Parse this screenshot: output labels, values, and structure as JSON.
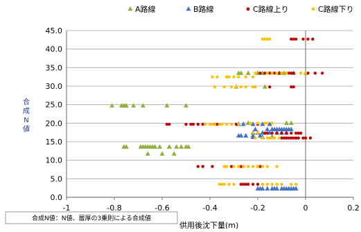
{
  "chart_data": {
    "type": "scatter",
    "title": "",
    "xlabel": "供用後沈下量(m)",
    "ylabel": "合成N値",
    "xlim": [
      -1,
      0.2
    ],
    "ylim": [
      0,
      45
    ],
    "xticks": [
      "-1",
      "-0.8",
      "-0.6",
      "-0.4",
      "-0.2",
      "0",
      "0.2"
    ],
    "yticks": [
      "0.0",
      "5.0",
      "10.0",
      "15.0",
      "20.0",
      "25.0",
      "30.0",
      "35.0",
      "40.0",
      "45.0"
    ],
    "grid": "horizontal",
    "legend_position": "top",
    "note": "合成N値：N値、層厚の3乗則による合成値",
    "series": [
      {
        "name": "A路線",
        "marker": "triangle",
        "color": "#8db13a",
        "points": [
          [
            -0.81,
            24.7
          ],
          [
            -0.77,
            24.7
          ],
          [
            -0.76,
            24.7
          ],
          [
            -0.75,
            24.7
          ],
          [
            -0.72,
            24.7
          ],
          [
            -0.68,
            24.7
          ],
          [
            -0.58,
            24.7
          ],
          [
            -0.5,
            24.7
          ],
          [
            -0.76,
            13.6
          ],
          [
            -0.75,
            13.6
          ],
          [
            -0.69,
            13.6
          ],
          [
            -0.68,
            13.6
          ],
          [
            -0.67,
            13.6
          ],
          [
            -0.66,
            13.6
          ],
          [
            -0.65,
            13.6
          ],
          [
            -0.64,
            13.6
          ],
          [
            -0.63,
            13.6
          ],
          [
            -0.61,
            13.6
          ],
          [
            -0.57,
            13.6
          ],
          [
            -0.54,
            13.6
          ],
          [
            -0.52,
            13.6
          ],
          [
            -0.5,
            13.6
          ],
          [
            -0.49,
            13.6
          ],
          [
            -0.66,
            11.7
          ],
          [
            -0.6,
            11.7
          ],
          [
            -0.55,
            11.7
          ],
          [
            -0.28,
            33.5
          ],
          [
            -0.27,
            33.5
          ],
          [
            -0.24,
            33.5
          ],
          [
            -0.2,
            33.5
          ],
          [
            -0.18,
            33.5
          ],
          [
            -0.11,
            33.5
          ],
          [
            -0.09,
            33.5
          ],
          [
            -0.05,
            33.5
          ],
          [
            0.0,
            33.5
          ],
          [
            -0.29,
            29.8
          ],
          [
            -0.17,
            29.8
          ],
          [
            -0.24,
            20.0
          ],
          [
            -0.08,
            20.0
          ],
          [
            -0.06,
            20.0
          ]
        ]
      },
      {
        "name": "B路線",
        "marker": "triangle",
        "color": "#4472c4",
        "points": [
          [
            -0.2,
            2.3
          ],
          [
            -0.19,
            2.3
          ],
          [
            -0.18,
            2.3
          ],
          [
            -0.16,
            2.3
          ],
          [
            -0.14,
            2.3
          ],
          [
            -0.13,
            2.3
          ],
          [
            -0.12,
            2.3
          ],
          [
            -0.1,
            2.3
          ],
          [
            -0.09,
            2.3
          ],
          [
            -0.08,
            2.3
          ],
          [
            -0.07,
            2.3
          ],
          [
            -0.06,
            2.3
          ],
          [
            -0.05,
            2.3
          ],
          [
            -0.04,
            2.3
          ],
          [
            -0.28,
            16.6
          ],
          [
            -0.27,
            16.6
          ],
          [
            -0.25,
            16.6
          ],
          [
            -0.22,
            16.6
          ],
          [
            -0.19,
            16.6
          ],
          [
            -0.21,
            18.3
          ],
          [
            -0.16,
            18.3
          ],
          [
            -0.14,
            18.3
          ],
          [
            -0.13,
            18.3
          ],
          [
            -0.12,
            18.3
          ],
          [
            -0.11,
            18.3
          ],
          [
            -0.1,
            18.3
          ],
          [
            -0.09,
            18.3
          ],
          [
            -0.08,
            18.3
          ],
          [
            -0.07,
            18.3
          ],
          [
            -0.06,
            18.3
          ],
          [
            -0.22,
            17.4
          ],
          [
            -0.2,
            17.4
          ],
          [
            -0.18,
            17.4
          ],
          [
            -0.15,
            17.4
          ],
          [
            -0.12,
            17.4
          ],
          [
            -0.1,
            17.4
          ],
          [
            -0.08,
            17.4
          ],
          [
            -0.28,
            19.7
          ],
          [
            -0.26,
            19.7
          ],
          [
            -0.22,
            19.7
          ],
          [
            -0.18,
            19.7
          ],
          [
            -0.15,
            19.7
          ],
          [
            -0.22,
            16.2
          ],
          [
            -0.18,
            16.2
          ],
          [
            -0.14,
            16.2
          ]
        ]
      },
      {
        "name": "C路線上り",
        "marker": "circle",
        "color": "#c00000",
        "points": [
          [
            -0.06,
            42.7
          ],
          [
            -0.05,
            42.7
          ],
          [
            -0.04,
            42.7
          ],
          [
            -0.01,
            42.7
          ],
          [
            0.01,
            42.7
          ],
          [
            0.03,
            42.7
          ],
          [
            -0.19,
            33.5
          ],
          [
            -0.17,
            33.5
          ],
          [
            -0.15,
            33.5
          ],
          [
            -0.13,
            33.5
          ],
          [
            -0.11,
            33.5
          ],
          [
            -0.1,
            33.5
          ],
          [
            -0.08,
            33.5
          ],
          [
            -0.07,
            33.5
          ],
          [
            -0.06,
            33.5
          ],
          [
            -0.05,
            33.5
          ],
          [
            0.01,
            33.5
          ],
          [
            0.04,
            33.5
          ],
          [
            0.07,
            33.5
          ],
          [
            -0.15,
            29.8
          ],
          [
            -0.06,
            29.8
          ],
          [
            -0.05,
            29.8
          ],
          [
            -0.58,
            19.7
          ],
          [
            -0.57,
            19.7
          ],
          [
            -0.5,
            19.7
          ],
          [
            -0.48,
            19.7
          ],
          [
            -0.47,
            19.7
          ],
          [
            -0.45,
            19.7
          ],
          [
            -0.43,
            19.7
          ],
          [
            -0.42,
            19.7
          ],
          [
            -0.38,
            19.7
          ],
          [
            -0.37,
            19.7
          ],
          [
            -0.29,
            19.7
          ],
          [
            -0.2,
            19.7
          ],
          [
            -0.17,
            17.3
          ],
          [
            -0.16,
            17.3
          ],
          [
            -0.14,
            17.3
          ],
          [
            -0.12,
            17.3
          ],
          [
            -0.1,
            17.3
          ],
          [
            -0.08,
            17.3
          ],
          [
            -0.06,
            17.3
          ],
          [
            -0.04,
            17.3
          ],
          [
            -0.03,
            17.3
          ],
          [
            -0.02,
            17.3
          ],
          [
            -0.1,
            16.0
          ],
          [
            -0.09,
            16.0
          ],
          [
            -0.08,
            16.0
          ],
          [
            -0.07,
            16.0
          ],
          [
            -0.06,
            16.0
          ],
          [
            -0.05,
            16.0
          ],
          [
            -0.04,
            16.0
          ],
          [
            -0.03,
            16.0
          ],
          [
            -0.01,
            16.0
          ],
          [
            0.0,
            16.0
          ],
          [
            0.02,
            16.0
          ],
          [
            -0.45,
            8.3
          ],
          [
            -0.43,
            8.3
          ],
          [
            -0.39,
            8.3
          ],
          [
            -0.31,
            8.3
          ],
          [
            -0.27,
            8.3
          ],
          [
            -0.26,
            8.3
          ],
          [
            -0.2,
            8.3
          ],
          [
            -0.19,
            8.3
          ],
          [
            -0.27,
            3.5
          ],
          [
            -0.26,
            3.5
          ],
          [
            -0.25,
            3.5
          ],
          [
            -0.24,
            3.5
          ],
          [
            -0.22,
            3.5
          ],
          [
            -0.2,
            3.5
          ]
        ]
      },
      {
        "name": "C路線下り",
        "marker": "circle",
        "color": "#ffc000",
        "points": [
          [
            -0.18,
            42.7
          ],
          [
            -0.17,
            42.7
          ],
          [
            -0.16,
            42.7
          ],
          [
            -0.15,
            42.7
          ],
          [
            -0.39,
            32.5
          ],
          [
            -0.37,
            32.5
          ],
          [
            -0.33,
            32.5
          ],
          [
            -0.32,
            32.5
          ],
          [
            -0.3,
            32.5
          ],
          [
            -0.28,
            32.5
          ],
          [
            -0.25,
            32.5
          ],
          [
            -0.22,
            32.5
          ],
          [
            -0.21,
            33.5
          ],
          [
            -0.16,
            33.5
          ],
          [
            -0.14,
            33.5
          ],
          [
            -0.12,
            33.5
          ],
          [
            -0.1,
            33.5
          ],
          [
            -0.08,
            33.5
          ],
          [
            -0.02,
            33.5
          ],
          [
            0.0,
            33.5
          ],
          [
            -0.38,
            29.8
          ],
          [
            -0.34,
            29.8
          ],
          [
            -0.31,
            29.8
          ],
          [
            -0.29,
            29.8
          ],
          [
            -0.27,
            29.8
          ],
          [
            -0.25,
            29.8
          ],
          [
            -0.22,
            29.8
          ],
          [
            -0.21,
            29.8
          ],
          [
            -0.42,
            19.7
          ],
          [
            -0.4,
            19.7
          ],
          [
            -0.39,
            19.7
          ],
          [
            -0.38,
            19.7
          ],
          [
            -0.36,
            19.7
          ],
          [
            -0.35,
            19.7
          ],
          [
            -0.33,
            19.7
          ],
          [
            -0.31,
            19.7
          ],
          [
            -0.28,
            19.7
          ],
          [
            -0.23,
            20.0
          ],
          [
            -0.2,
            20.0
          ],
          [
            -0.17,
            20.0
          ],
          [
            -0.16,
            20.0
          ],
          [
            -0.14,
            20.0
          ],
          [
            -0.21,
            16.0
          ],
          [
            -0.18,
            16.0
          ],
          [
            -0.16,
            16.0
          ],
          [
            -0.15,
            16.0
          ],
          [
            -0.14,
            16.0
          ],
          [
            -0.13,
            16.0
          ],
          [
            -0.11,
            16.0
          ],
          [
            -0.22,
            17.4
          ],
          [
            -0.2,
            17.4
          ],
          [
            -0.34,
            8.3
          ],
          [
            -0.33,
            8.3
          ],
          [
            -0.3,
            8.3
          ],
          [
            -0.28,
            8.3
          ],
          [
            -0.26,
            8.3
          ],
          [
            -0.24,
            8.3
          ],
          [
            -0.22,
            8.3
          ],
          [
            -0.2,
            8.3
          ],
          [
            -0.18,
            8.3
          ],
          [
            -0.16,
            8.3
          ],
          [
            -0.12,
            8.3
          ],
          [
            -0.36,
            3.5
          ],
          [
            -0.35,
            3.5
          ],
          [
            -0.34,
            3.5
          ],
          [
            -0.32,
            3.5
          ],
          [
            -0.3,
            3.5
          ],
          [
            -0.18,
            3.5
          ],
          [
            -0.16,
            3.5
          ],
          [
            -0.14,
            3.5
          ],
          [
            -0.12,
            3.5
          ],
          [
            -0.1,
            3.5
          ],
          [
            -0.06,
            3.5
          ],
          [
            -0.04,
            3.5
          ]
        ]
      }
    ]
  }
}
